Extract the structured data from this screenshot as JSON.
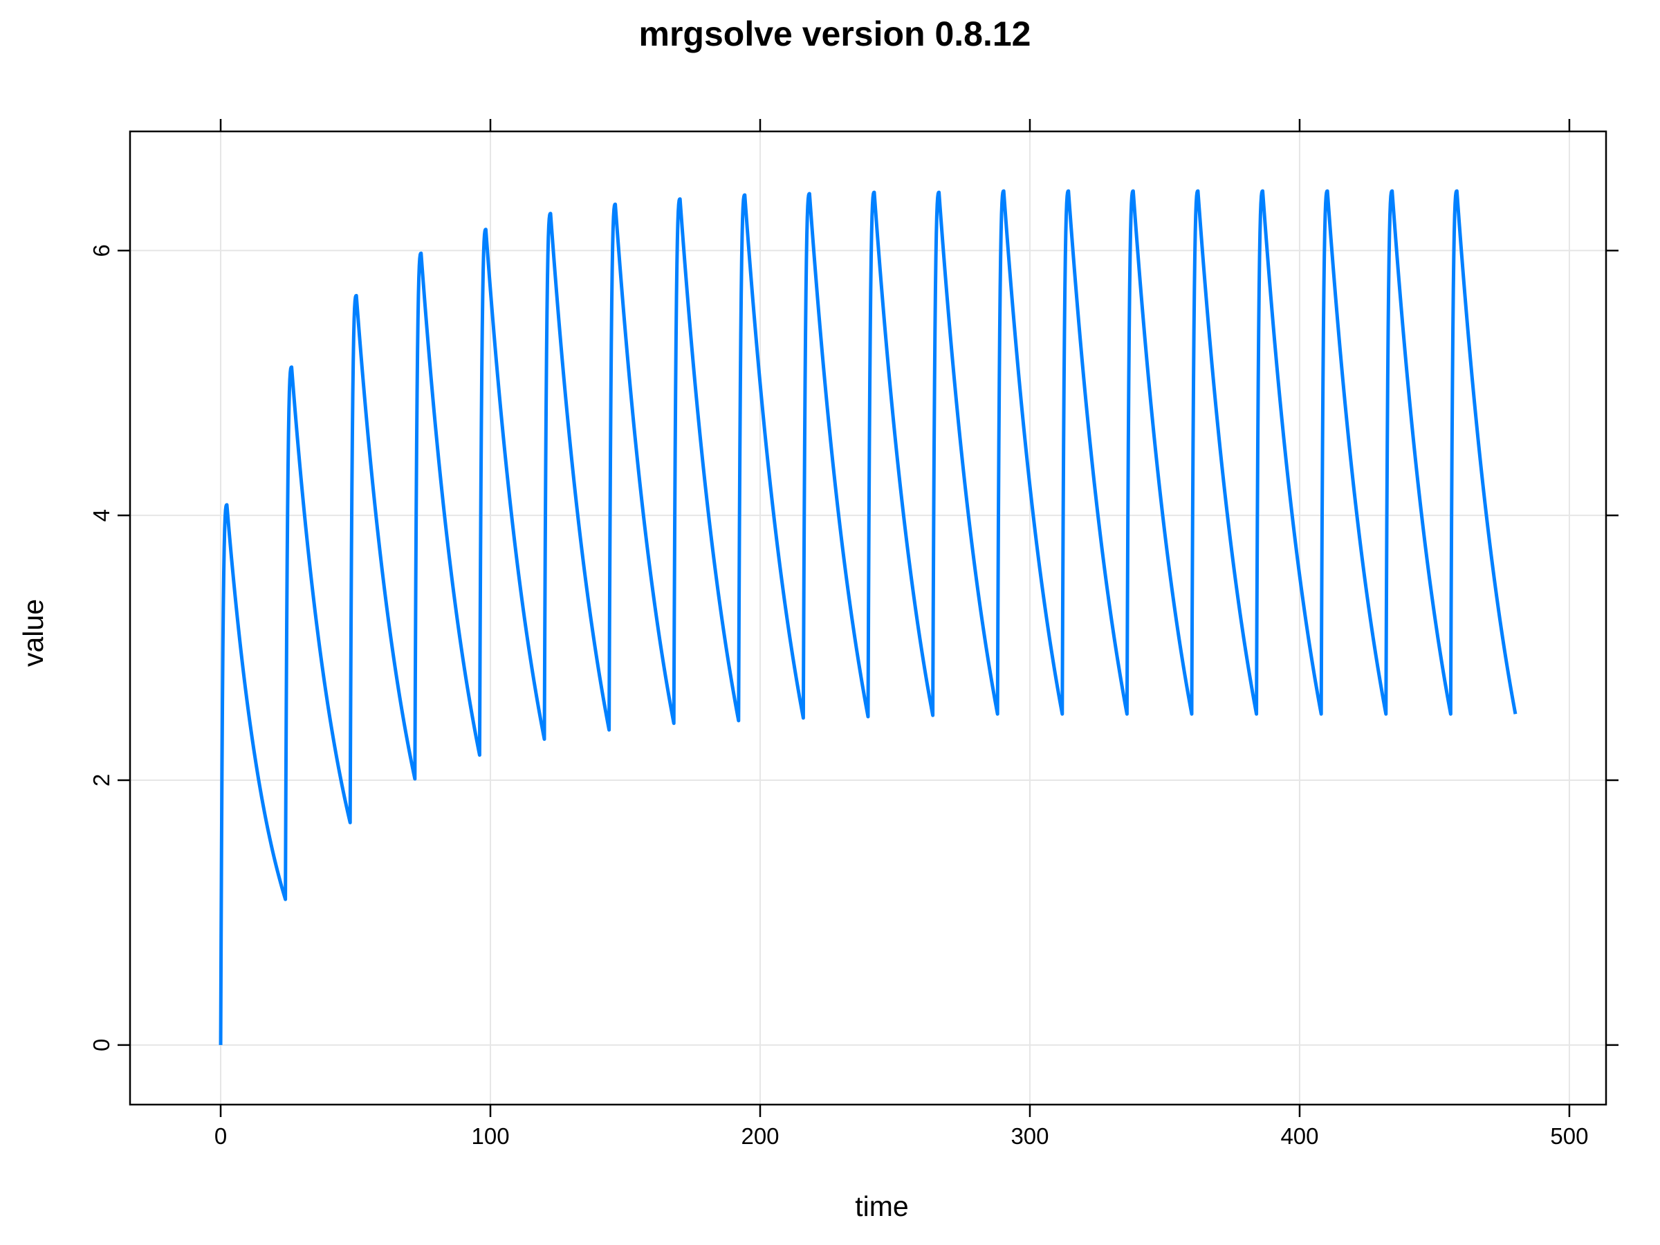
{
  "chart_data": {
    "type": "line",
    "title": "mrgsolve version 0.8.12",
    "xlabel": "time",
    "ylabel": "value",
    "xlim": [
      -33.6,
      513.6
    ],
    "ylim": [
      -0.45,
      6.9
    ],
    "x_ticks": [
      0,
      100,
      200,
      300,
      400,
      500
    ],
    "x_tick_labels": [
      "0",
      "100",
      "200",
      "300",
      "400",
      "500"
    ],
    "y_ticks": [
      0,
      2,
      4,
      6
    ],
    "y_tick_labels": [
      "0",
      "2",
      "4",
      "6"
    ],
    "grid": true,
    "line_color": "#0080ff",
    "dosing": {
      "interval": 24,
      "n_doses": 20,
      "end_time": 480,
      "dose_times": [
        0,
        24,
        48,
        72,
        96,
        120,
        144,
        168,
        192,
        216,
        240,
        264,
        288,
        312,
        336,
        360,
        384,
        408,
        432,
        456
      ],
      "peak_times": [
        2.3,
        26.3,
        50.3,
        74.3,
        98.3,
        122.3,
        146.3,
        170.3,
        194.3,
        218.3,
        242.3,
        266.3,
        290.3,
        314.3,
        338.3,
        362.3,
        386.3,
        410.3,
        434.3,
        458.3
      ],
      "peak_values": [
        4.08,
        5.12,
        5.66,
        5.98,
        6.16,
        6.28,
        6.35,
        6.39,
        6.42,
        6.43,
        6.44,
        6.44,
        6.45,
        6.45,
        6.45,
        6.45,
        6.45,
        6.45,
        6.45,
        6.45
      ],
      "trough_values": [
        1.1,
        1.68,
        2.01,
        2.19,
        2.31,
        2.38,
        2.43,
        2.45,
        2.47,
        2.48,
        2.49,
        2.5,
        2.5,
        2.5,
        2.5,
        2.5,
        2.5,
        2.5,
        2.5,
        2.5
      ]
    }
  }
}
